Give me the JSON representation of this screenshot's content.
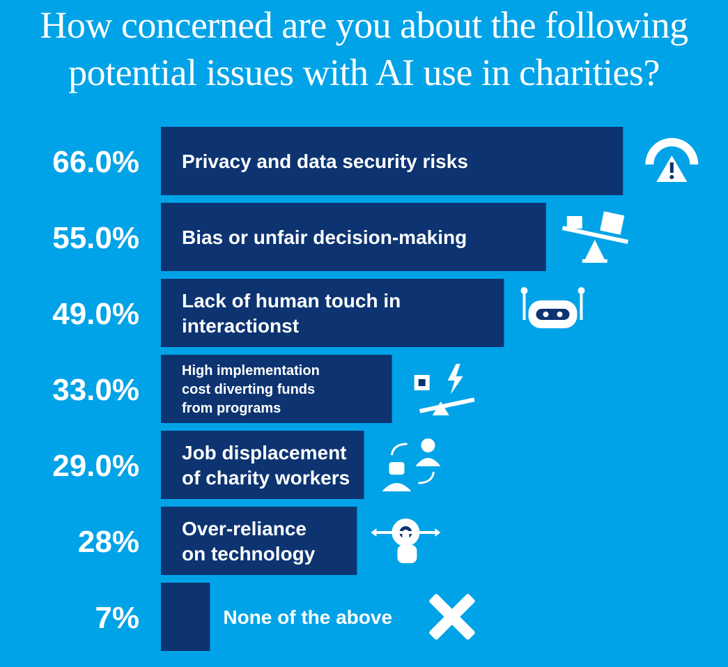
{
  "title_lines": [
    "How concerned are you about the following",
    "potential issues with AI use in charities?"
  ],
  "colors": {
    "background": "#00a3e7",
    "bar": "#0d3471",
    "text": "#ffffff"
  },
  "chart_data": {
    "type": "bar",
    "orientation": "horizontal",
    "title": "How concerned are you about the following potential issues with AI use in charities?",
    "unit": "%",
    "categories": [
      "Privacy and data security risks",
      "Bias or unfair decision-making",
      "Lack of human touch in interactionst",
      "High implementation cost diverting funds from programs",
      "Job displacement of charity workers",
      "Over-reliance on technology",
      "None of the above"
    ],
    "values": [
      66.0,
      55.0,
      49.0,
      33.0,
      29.0,
      28,
      7
    ],
    "value_labels": [
      "66.0%",
      "55.0%",
      "49.0%",
      "33.0%",
      "29.0%",
      "28%",
      "7%"
    ],
    "label_lines": [
      [
        "Privacy and data security risks"
      ],
      [
        "Bias or unfair decision-making"
      ],
      [
        "Lack of human touch in",
        "interactionst"
      ],
      [
        "High implementation",
        "cost diverting funds",
        "from programs"
      ],
      [
        "Job displacement",
        "of charity workers"
      ],
      [
        "Over-reliance",
        "on technology"
      ],
      [
        "None of the above"
      ]
    ],
    "icons": [
      "warning-gauge-icon",
      "seesaw-icon",
      "robot-icon",
      "chip-bolt-balance-icon",
      "robot-person-swap-icon",
      "gear-hand-icon",
      "x-mark-icon"
    ],
    "xlim": [
      0,
      66
    ]
  }
}
